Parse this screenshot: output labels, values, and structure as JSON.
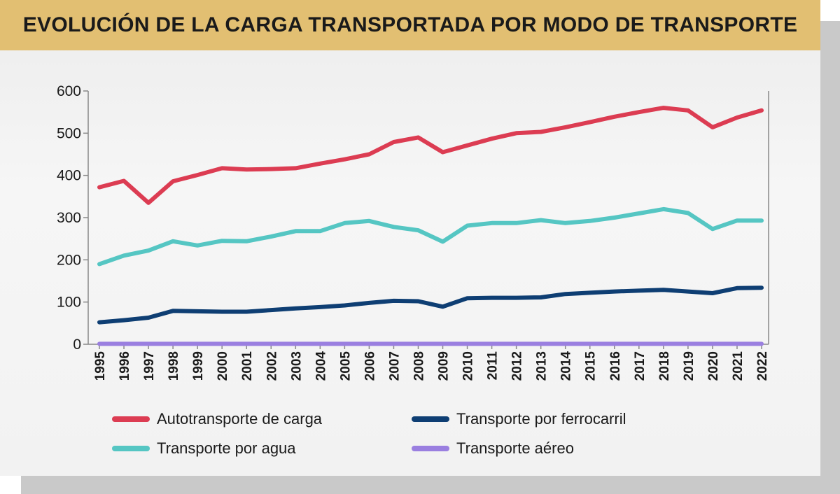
{
  "chart_data": {
    "type": "line",
    "title": "EVOLUCIÓN DE LA CARGA TRANSPORTADA POR MODO DE TRANSPORTE",
    "xlabel": "",
    "ylabel": "",
    "ylim": [
      0,
      600
    ],
    "yticks": [
      0,
      100,
      200,
      300,
      400,
      500,
      600
    ],
    "x": [
      "1995",
      "1996",
      "1997",
      "1998",
      "1999",
      "2000",
      "2001",
      "2002",
      "2003",
      "2004",
      "2005",
      "2006",
      "2007",
      "2008",
      "2009",
      "2010",
      "2011",
      "2012",
      "2013",
      "2014",
      "2015",
      "2016",
      "2017",
      "2018",
      "2019",
      "2020",
      "2021",
      "2022"
    ],
    "legend_position": "bottom",
    "grid": false,
    "series": [
      {
        "name": "Autotransporte de carga",
        "color": "#dc3c52",
        "values": [
          372,
          387,
          335,
          386,
          401,
          417,
          414,
          415,
          417,
          428,
          438,
          450,
          479,
          490,
          455,
          471,
          487,
          500,
          503,
          514,
          526,
          539,
          550,
          560,
          554,
          514,
          537,
          554
        ]
      },
      {
        "name": "Transporte por ferrocarril",
        "color": "#0e3e73",
        "values": [
          52,
          57,
          63,
          79,
          78,
          77,
          77,
          81,
          85,
          88,
          92,
          98,
          103,
          102,
          89,
          109,
          110,
          110,
          111,
          119,
          122,
          125,
          127,
          129,
          125,
          121,
          133,
          134
        ]
      },
      {
        "name": "Transporte por agua",
        "color": "#55c6c3",
        "values": [
          190,
          210,
          222,
          244,
          234,
          245,
          244,
          255,
          268,
          268,
          287,
          292,
          278,
          270,
          243,
          281,
          287,
          287,
          294,
          287,
          292,
          300,
          310,
          320,
          311,
          273,
          293,
          293
        ]
      },
      {
        "name": "Transporte aéreo",
        "color": "#9a7fe0",
        "values": [
          1,
          1,
          1,
          1,
          1,
          1,
          1,
          1,
          1,
          1,
          1,
          1,
          1,
          1,
          1,
          1,
          1,
          1,
          1,
          1,
          1,
          1,
          1,
          1,
          1,
          1,
          1,
          1
        ]
      }
    ]
  }
}
